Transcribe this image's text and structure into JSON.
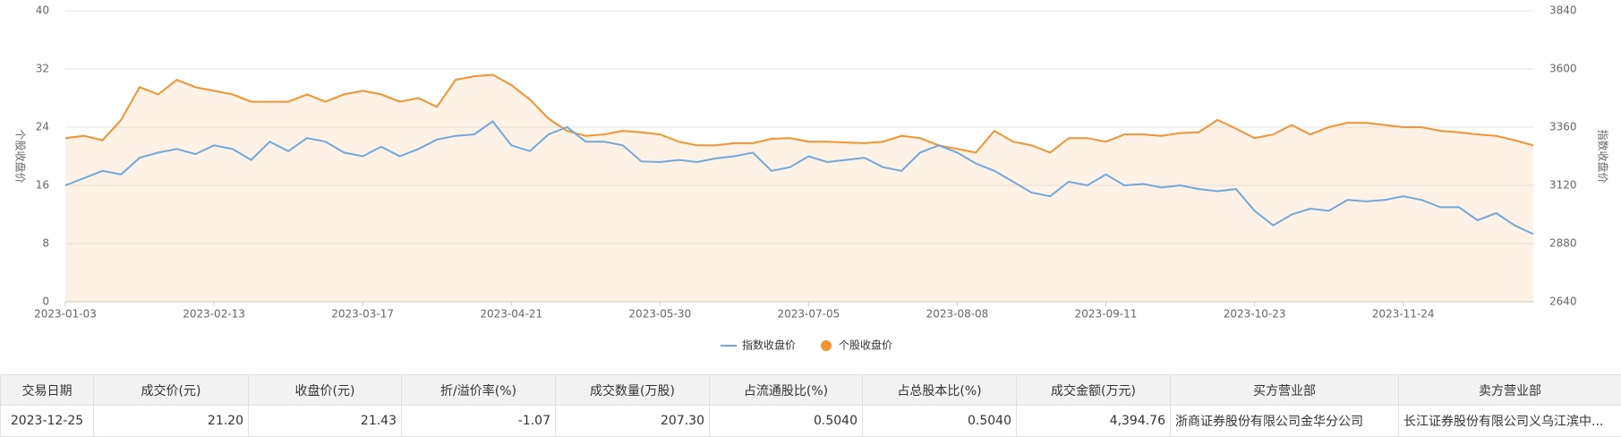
{
  "chart_data": {
    "type": "line",
    "ylabel": "个股收盘价",
    "y2label": "指数收盘价",
    "categories": [
      "2023-01-03",
      null,
      null,
      null,
      null,
      null,
      null,
      null,
      "2023-02-13",
      null,
      null,
      null,
      null,
      null,
      null,
      null,
      "2023-03-17",
      null,
      null,
      null,
      null,
      null,
      null,
      null,
      "2023-04-21",
      null,
      null,
      null,
      null,
      null,
      null,
      null,
      "2023-05-30",
      null,
      null,
      null,
      null,
      null,
      null,
      null,
      "2023-07-05",
      null,
      null,
      null,
      null,
      null,
      null,
      null,
      "2023-08-08",
      null,
      null,
      null,
      null,
      null,
      null,
      null,
      "2023-09-11",
      null,
      null,
      null,
      null,
      null,
      null,
      null,
      "2023-10-23",
      null,
      null,
      null,
      null,
      null,
      null,
      null,
      "2023-11-24",
      null,
      null,
      null,
      null,
      null,
      null,
      null
    ],
    "ylim": [
      0,
      40
    ],
    "yticks": [
      0,
      8,
      16,
      24,
      32,
      40
    ],
    "y2lim": [
      2640,
      3840
    ],
    "y2ticks": [
      2640,
      2880,
      3120,
      3360,
      3600,
      3840
    ],
    "grid": true,
    "series": [
      {
        "name": "指数收盘价",
        "color": "#6fa8dc",
        "axis": "y2",
        "values": [
          3120,
          3150,
          3180,
          3165,
          3234,
          3255,
          3270,
          3249,
          3285,
          3270,
          3225,
          3300,
          3261,
          3315,
          3300,
          3255,
          3240,
          3279,
          3240,
          3270,
          3309,
          3324,
          3330,
          3384,
          3285,
          3261,
          3330,
          3360,
          3300,
          3300,
          3285,
          3219,
          3216,
          3225,
          3216,
          3231,
          3240,
          3255,
          3180,
          3195,
          3240,
          3216,
          3225,
          3234,
          3195,
          3180,
          3255,
          3285,
          3255,
          3210,
          3180,
          3135,
          3090,
          3075,
          3135,
          3120,
          3165,
          3120,
          3126,
          3111,
          3120,
          3105,
          3096,
          3105,
          3015,
          2955,
          3000,
          3024,
          3015,
          3060,
          3054,
          3060,
          3075,
          3060,
          3030,
          3030,
          2976,
          3006,
          2955,
          2919
        ]
      },
      {
        "name": "个股收盘价",
        "color": "#f39332",
        "area": true,
        "values": [
          22.5,
          22.8,
          22.2,
          25,
          29.5,
          28.5,
          30.5,
          29.5,
          29,
          28.5,
          27.5,
          27.5,
          27.5,
          28.5,
          27.5,
          28.5,
          29,
          28.5,
          27.5,
          28,
          26.8,
          30.5,
          31,
          31.2,
          29.8,
          27.8,
          25.2,
          23.5,
          22.8,
          23,
          23.5,
          23.3,
          23,
          22,
          21.5,
          21.5,
          21.8,
          21.8,
          22.4,
          22.5,
          22,
          22,
          21.9,
          21.8,
          22,
          22.8,
          22.5,
          21.5,
          21,
          20.5,
          23.5,
          22,
          21.5,
          20.5,
          22.5,
          22.5,
          22,
          23,
          23,
          22.8,
          23.2,
          23.3,
          25,
          23.8,
          22.5,
          23,
          24.3,
          23,
          24,
          24.6,
          24.6,
          24.3,
          24,
          24,
          23.5,
          23.3,
          23,
          22.8,
          22.2,
          21.5
        ]
      }
    ]
  },
  "table": {
    "headers": [
      "交易日期",
      "成交价(元)",
      "收盘价(元)",
      "折/溢价率(%)",
      "成交数量(万股)",
      "占流通股比(%)",
      "占总股本比(%)",
      "成交金额(万元)",
      "买方营业部",
      "卖方营业部"
    ],
    "rows": [
      [
        "2023-12-25",
        "21.20",
        "21.43",
        "-1.07",
        "207.30",
        "0.5040",
        "0.5040",
        "4,394.76",
        "浙商证券股份有限公司金华分公司",
        "长江证券股份有限公司义乌江滨中..."
      ]
    ]
  }
}
